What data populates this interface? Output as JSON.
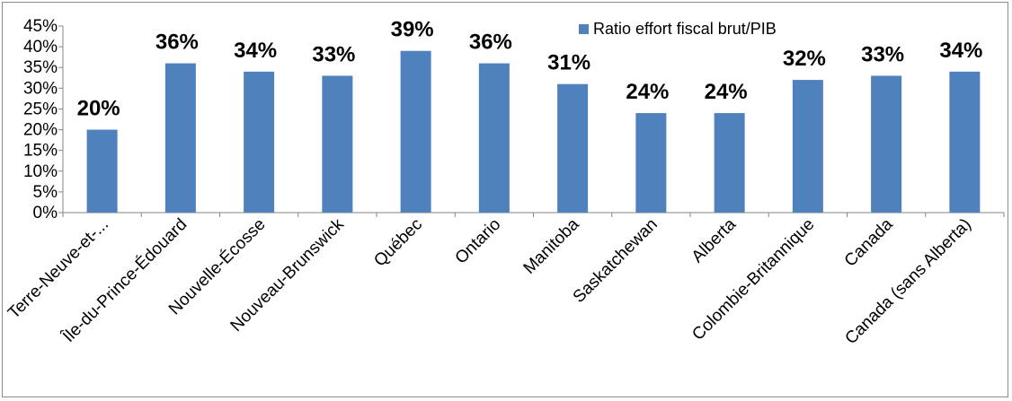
{
  "chart_data": {
    "type": "bar",
    "categories": [
      "Terre-Neuve-et-...",
      "Île-du-Prince-Édouard",
      "Nouvelle-Écosse",
      "Nouveau-Brunswick",
      "Québec",
      "Ontario",
      "Manitoba",
      "Saskatchewan",
      "Alberta",
      "Colombie-Britannique",
      "Canada",
      "Canada (sans Alberta)"
    ],
    "series": [
      {
        "name": "Ratio effort fiscal brut/PIB",
        "values": [
          0.2,
          0.36,
          0.34,
          0.33,
          0.39,
          0.36,
          0.31,
          0.24,
          0.24,
          0.32,
          0.33,
          0.34
        ],
        "data_labels": [
          "20%",
          "36%",
          "34%",
          "33%",
          "39%",
          "36%",
          "31%",
          "24%",
          "24%",
          "32%",
          "33%",
          "34%"
        ],
        "color": "#4f81bd"
      }
    ],
    "ylim": [
      0,
      0.45
    ],
    "yticks": [
      0,
      0.05,
      0.1,
      0.15,
      0.2,
      0.25,
      0.3,
      0.35,
      0.4,
      0.45
    ],
    "ytick_labels": [
      "0%",
      "5%",
      "10%",
      "15%",
      "20%",
      "25%",
      "30%",
      "35%",
      "40%",
      "45%"
    ],
    "title": "",
    "xlabel": "",
    "ylabel": "",
    "grid": false,
    "legend_position": "top-right"
  }
}
